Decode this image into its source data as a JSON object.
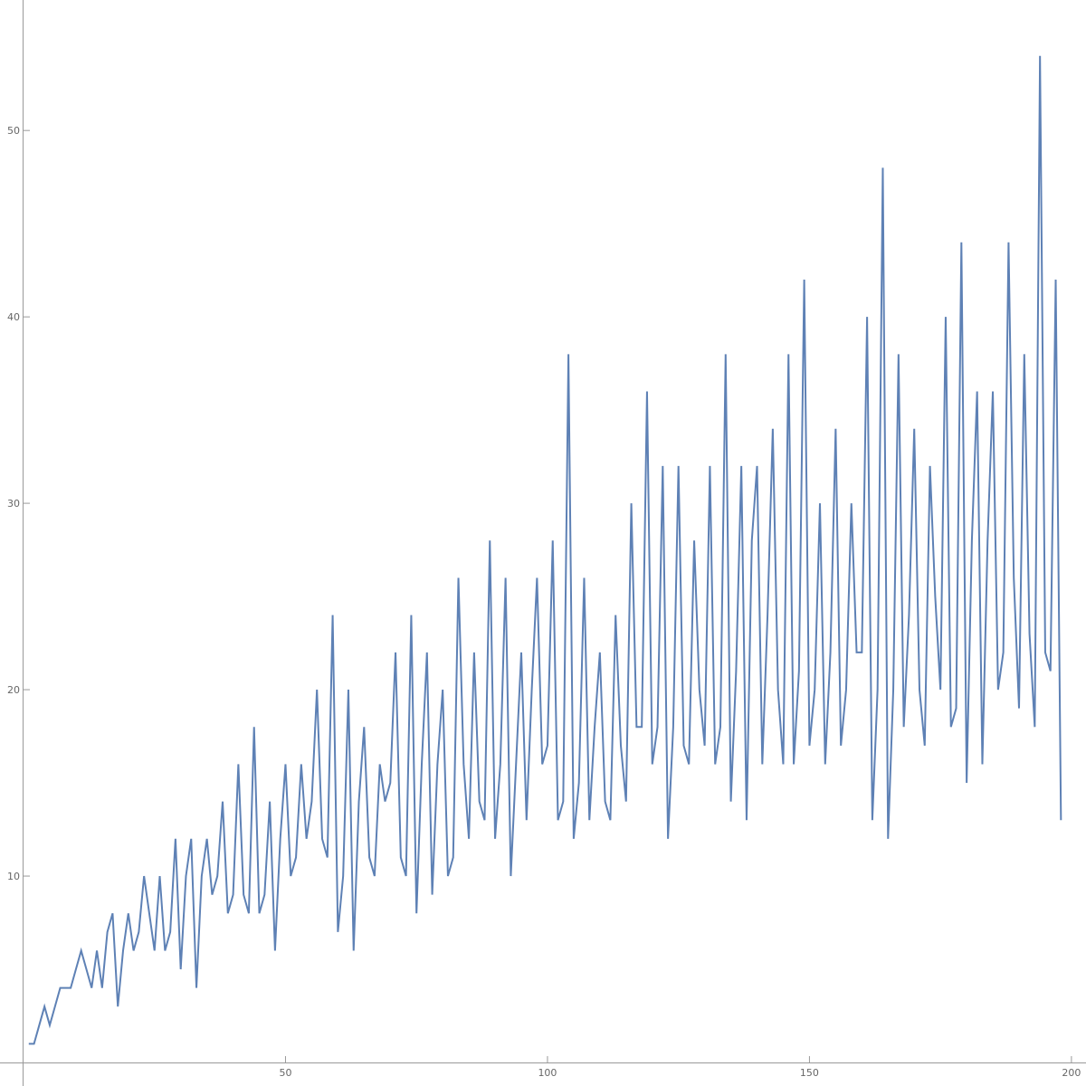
{
  "chart_data": {
    "type": "line",
    "x": [
      1,
      2,
      3,
      4,
      5,
      6,
      7,
      8,
      9,
      10,
      11,
      12,
      13,
      14,
      15,
      16,
      17,
      18,
      19,
      20,
      21,
      22,
      23,
      24,
      25,
      26,
      27,
      28,
      29,
      30,
      31,
      32,
      33,
      34,
      35,
      36,
      37,
      38,
      39,
      40,
      41,
      42,
      43,
      44,
      45,
      46,
      47,
      48,
      49,
      50,
      51,
      52,
      53,
      54,
      55,
      56,
      57,
      58,
      59,
      60,
      61,
      62,
      63,
      64,
      65,
      66,
      67,
      68,
      69,
      70,
      71,
      72,
      73,
      74,
      75,
      76,
      77,
      78,
      79,
      80,
      81,
      82,
      83,
      84,
      85,
      86,
      87,
      88,
      89,
      90,
      91,
      92,
      93,
      94,
      95,
      96,
      97,
      98,
      99,
      100,
      101,
      102,
      103,
      104,
      105,
      106,
      107,
      108,
      109,
      110,
      111,
      112,
      113,
      114,
      115,
      116,
      117,
      118,
      119,
      120,
      121,
      122,
      123,
      124,
      125,
      126,
      127,
      128,
      129,
      130,
      131,
      132,
      133,
      134,
      135,
      136,
      137,
      138,
      139,
      140,
      141,
      142,
      143,
      144,
      145,
      146,
      147,
      148,
      149,
      150,
      151,
      152,
      153,
      154,
      155,
      156,
      157,
      158,
      159,
      160,
      161,
      162,
      163,
      164,
      165,
      166,
      167,
      168,
      169,
      170,
      171,
      172,
      173,
      174,
      175,
      176,
      177,
      178,
      179,
      180,
      181,
      182,
      183,
      184,
      185,
      186,
      187,
      188,
      189,
      190,
      191,
      192,
      193,
      194,
      195,
      196,
      197,
      198
    ],
    "series": [
      {
        "color": "#5e81b5",
        "values": [
          1,
          1,
          2,
          3,
          2,
          3,
          4,
          4,
          4,
          5,
          6,
          5,
          4,
          6,
          4,
          7,
          8,
          3,
          6,
          8,
          6,
          7,
          10,
          8,
          6,
          10,
          6,
          7,
          12,
          5,
          10,
          12,
          4,
          10,
          12,
          9,
          10,
          14,
          8,
          9,
          16,
          9,
          8,
          18,
          8,
          9,
          14,
          6,
          12,
          16,
          10,
          11,
          16,
          12,
          14,
          20,
          12,
          11,
          24,
          7,
          10,
          20,
          6,
          14,
          18,
          11,
          10,
          16,
          14,
          15,
          22,
          11,
          10,
          24,
          8,
          16,
          22,
          9,
          16,
          20,
          10,
          11,
          26,
          16,
          12,
          22,
          14,
          13,
          28,
          12,
          16,
          26,
          10,
          16,
          22,
          13,
          20,
          26,
          16,
          17,
          28,
          13,
          14,
          38,
          12,
          15,
          26,
          13,
          18,
          22,
          14,
          13,
          24,
          17,
          14,
          30,
          18,
          18,
          36,
          16,
          18,
          32,
          12,
          18,
          32,
          17,
          16,
          28,
          20,
          17,
          32,
          16,
          18,
          38,
          14,
          21,
          32,
          13,
          28,
          32,
          16,
          24,
          34,
          20,
          16,
          38,
          16,
          21,
          42,
          17,
          20,
          30,
          16,
          22,
          34,
          17,
          20,
          30,
          22,
          22,
          40,
          13,
          20,
          48,
          12,
          20,
          38,
          18,
          24,
          34,
          20,
          17,
          32,
          25,
          20,
          40,
          18,
          19,
          44,
          15,
          28,
          36,
          16,
          28,
          36,
          20,
          22,
          44,
          26,
          19,
          38,
          23,
          18,
          54,
          22,
          21,
          42,
          13
        ]
      }
    ],
    "xlim": [
      0,
      201.4
    ],
    "ylim": [
      0,
      57
    ],
    "xticks": [
      50,
      100,
      150,
      200
    ],
    "yticks": [
      10,
      20,
      30,
      40,
      50
    ]
  }
}
